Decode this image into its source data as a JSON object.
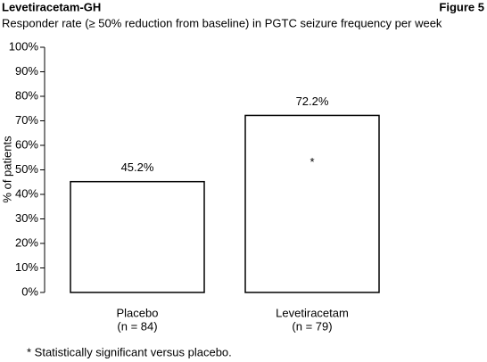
{
  "chart_data": {
    "type": "bar",
    "title": "Levetiracetam-GH",
    "figure_label": "Figure 5",
    "subtitle": "Responder rate (≥ 50% reduction from baseline) in PGTC seizure frequency per week",
    "y_label": "% of patients",
    "categories": [
      "Placebo",
      "Levetiracetam"
    ],
    "category_notes": [
      "(n = 84)",
      "(n = 79)"
    ],
    "values": [
      45.2,
      72.2
    ],
    "value_labels": [
      "45.2%",
      "72.2%"
    ],
    "bar_notes": [
      null,
      "*"
    ],
    "color": "#ffffff",
    "ylim": [
      0,
      100
    ],
    "yticks": [
      {
        "value": 0,
        "label": "0%"
      },
      {
        "value": 10,
        "label": "10%"
      },
      {
        "value": 20,
        "label": "20%"
      },
      {
        "value": 30,
        "label": "30%"
      },
      {
        "value": 40,
        "label": "40%"
      },
      {
        "value": 50,
        "label": "50%"
      },
      {
        "value": 60,
        "label": "60%"
      },
      {
        "value": 70,
        "label": "70%"
      },
      {
        "value": 80,
        "label": "80%"
      },
      {
        "value": 90,
        "label": "90%"
      },
      {
        "value": 100,
        "label": "100%"
      }
    ],
    "grid": false,
    "footnote": "* Statistically significant versus placebo."
  }
}
